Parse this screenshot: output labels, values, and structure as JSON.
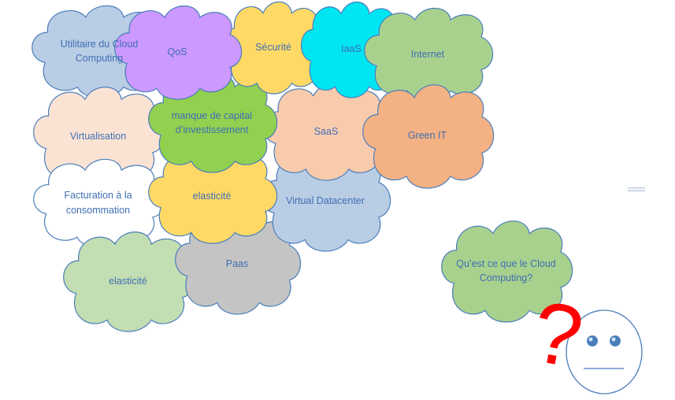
{
  "diagram": {
    "clouds": [
      {
        "id": "utilitaire",
        "label": "Utilitaire du Cloud Computing",
        "fill": "#b9cde5"
      },
      {
        "id": "virtualisation",
        "label": "Virtualisation",
        "fill": "#fbe3d4"
      },
      {
        "id": "facturation",
        "label": "Facturation à la consommation",
        "fill": "#ffffff"
      },
      {
        "id": "elasticite-green",
        "label": "elasticité",
        "fill": "#c3deb2"
      },
      {
        "id": "paas",
        "label": "Paas",
        "fill": "#c4c4c4"
      },
      {
        "id": "virtual-datacenter",
        "label": "Virtual Datacenter",
        "fill": "#b9cde5"
      },
      {
        "id": "saas",
        "label": "SaaS",
        "fill": "#f8cbad"
      },
      {
        "id": "elasticite-yellow",
        "label": "elasticité",
        "fill": "#ffd966"
      },
      {
        "id": "manque-capital",
        "label": "manque de capital d’investissement",
        "fill": "#92d050"
      },
      {
        "id": "securite",
        "label": "Sécurité",
        "fill": "#ffd966"
      },
      {
        "id": "qos",
        "label": "QoS",
        "fill": "#cc99ff"
      },
      {
        "id": "iaas",
        "label": "IaaS",
        "fill": "#00e5f2"
      },
      {
        "id": "internet",
        "label": "Internet",
        "fill": "#a9d18e"
      },
      {
        "id": "green-it",
        "label": "Green IT",
        "fill": "#f4b183"
      },
      {
        "id": "question",
        "label": "Qu’est ce que le Cloud Computing?",
        "fill": "#a9d18e"
      }
    ],
    "outline_color": "#4a7ebb",
    "label_color": "#3f6fb3",
    "question_mark": {
      "char": "?",
      "color": "#ff0000"
    },
    "face": {
      "fill": "#ffffff",
      "eye_color": "#4a7ebb"
    }
  }
}
